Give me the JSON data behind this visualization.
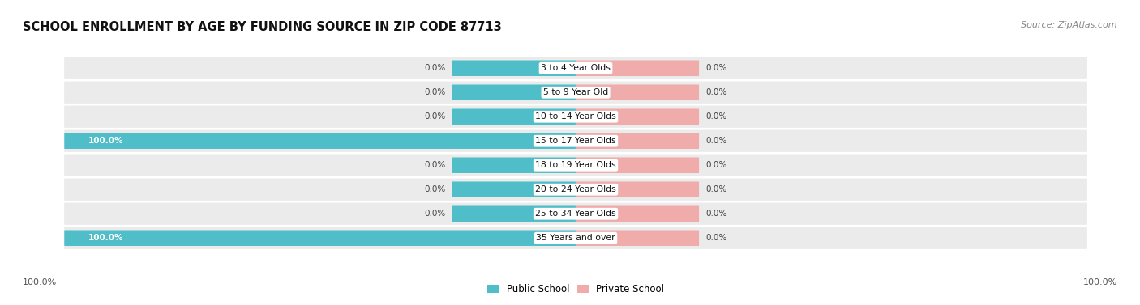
{
  "title": "SCHOOL ENROLLMENT BY AGE BY FUNDING SOURCE IN ZIP CODE 87713",
  "source": "Source: ZipAtlas.com",
  "categories": [
    "3 to 4 Year Olds",
    "5 to 9 Year Old",
    "10 to 14 Year Olds",
    "15 to 17 Year Olds",
    "18 to 19 Year Olds",
    "20 to 24 Year Olds",
    "25 to 34 Year Olds",
    "35 Years and over"
  ],
  "public_values": [
    0.0,
    0.0,
    0.0,
    100.0,
    0.0,
    0.0,
    0.0,
    100.0
  ],
  "private_values": [
    0.0,
    0.0,
    0.0,
    0.0,
    0.0,
    0.0,
    0.0,
    0.0
  ],
  "public_color": "#50BEC8",
  "private_color": "#F0ABAB",
  "row_bg_color": "#EBEBEB",
  "label_color": "#444444",
  "title_color": "#111111",
  "source_color": "#888888",
  "axis_label_color": "#555555",
  "max_val": 100.0,
  "legend_public": "Public School",
  "legend_private": "Private School",
  "left_axis_label": "100.0%",
  "right_axis_label": "100.0%",
  "title_fontsize": 10.5,
  "source_fontsize": 8.0,
  "label_fontsize": 7.5,
  "cat_fontsize": 7.8
}
